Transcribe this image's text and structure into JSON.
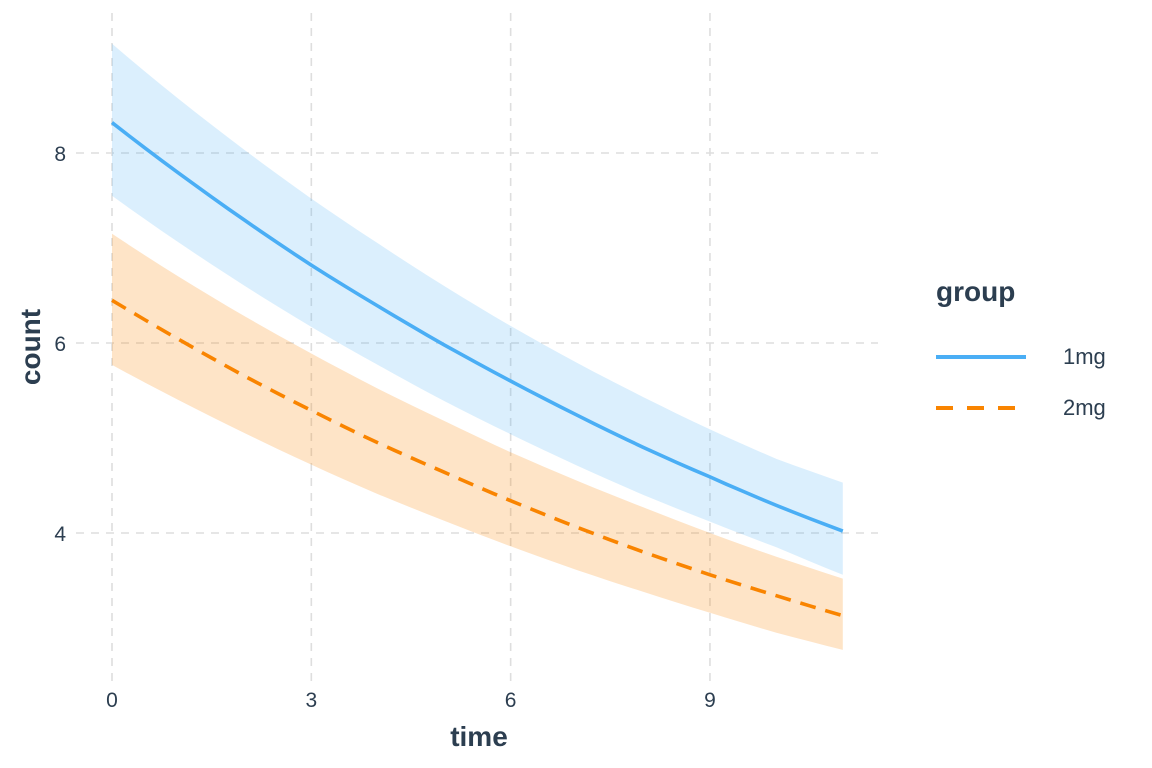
{
  "chart_data": {
    "type": "line",
    "title": "",
    "xlabel": "time",
    "ylabel": "count",
    "legend_title": "group",
    "legend_position": "right",
    "grid": "major gridlines, dashed, both axes",
    "background": "#ffffff",
    "text_color": "#2c3e50",
    "gridline_color": "#dedede",
    "x_ticks": [
      0,
      3,
      6,
      9
    ],
    "y_ticks": [
      4,
      6,
      8
    ],
    "xlim": [
      -0.55,
      11.55
    ],
    "ylim": [
      2.42,
      9.47
    ],
    "x": [
      0,
      1,
      2,
      3,
      4,
      5,
      6,
      7,
      8,
      9,
      10,
      11
    ],
    "series": [
      {
        "name": "1mg",
        "color": "#4aaef5",
        "linetype": "solid",
        "band_opacity": 0.2,
        "values": [
          8.32,
          7.79,
          7.29,
          6.82,
          6.39,
          5.98,
          5.6,
          5.24,
          4.9,
          4.59,
          4.29,
          4.02
        ],
        "ci_upper": [
          9.15,
          8.57,
          8.03,
          7.52,
          7.05,
          6.6,
          6.18,
          5.79,
          5.43,
          5.09,
          4.78,
          4.53
        ],
        "ci_lower": [
          7.55,
          7.06,
          6.6,
          6.17,
          5.77,
          5.39,
          5.04,
          4.71,
          4.4,
          4.12,
          3.85,
          3.56
        ]
      },
      {
        "name": "2mg",
        "color": "#f98400",
        "linetype": "dashed",
        "band_opacity": 0.22,
        "values": [
          6.45,
          6.04,
          5.65,
          5.29,
          4.95,
          4.64,
          4.34,
          4.06,
          3.8,
          3.56,
          3.34,
          3.13
        ],
        "ci_upper": [
          7.15,
          6.7,
          6.28,
          5.89,
          5.52,
          5.18,
          4.85,
          4.55,
          4.27,
          4.0,
          3.75,
          3.52
        ],
        "ci_lower": [
          5.77,
          5.4,
          5.05,
          4.72,
          4.41,
          4.13,
          3.86,
          3.61,
          3.38,
          3.16,
          2.95,
          2.77
        ]
      }
    ]
  }
}
